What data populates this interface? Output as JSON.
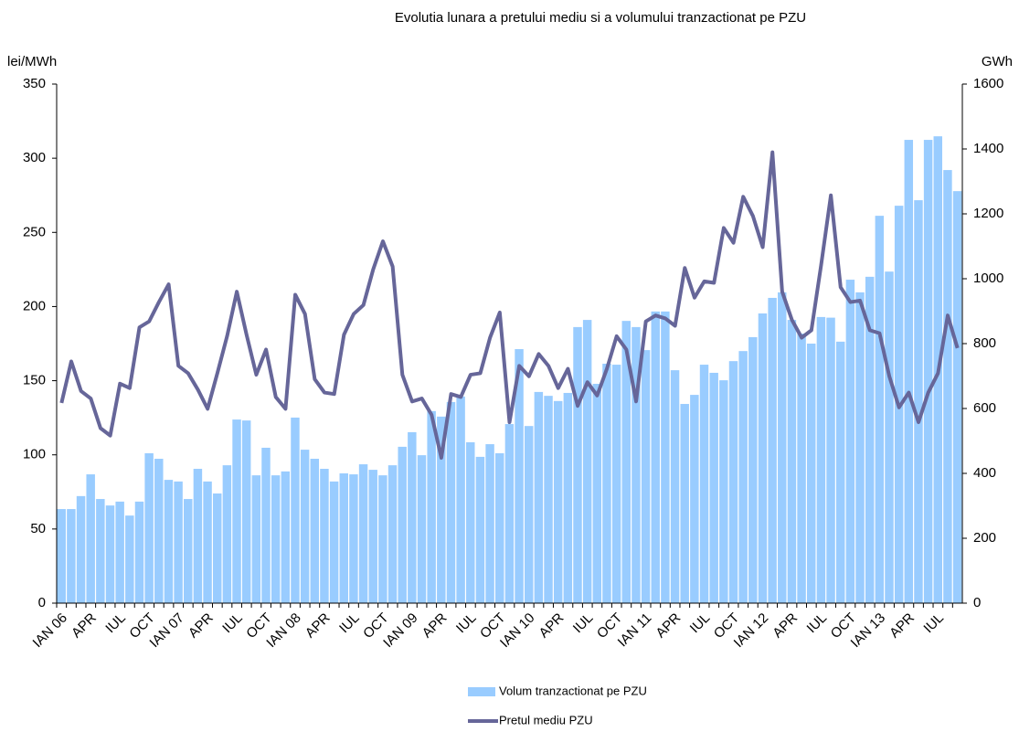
{
  "chart_data": {
    "type": "bar-line",
    "title": "Evolutia lunara a pretului mediu si a volumului tranzactionat pe PZU",
    "y_label": "lei/MWh",
    "y2_label": "GWh",
    "categories": [
      "IAN 06",
      null,
      null,
      "APR",
      null,
      null,
      "IUL",
      null,
      null,
      "OCT",
      null,
      null,
      "IAN 07",
      null,
      null,
      "APR",
      null,
      null,
      "IUL",
      null,
      null,
      "OCT",
      null,
      null,
      "IAN 08",
      null,
      null,
      "APR",
      null,
      null,
      "IUL",
      null,
      null,
      "OCT",
      null,
      null,
      "IAN 09",
      null,
      null,
      "APR",
      null,
      null,
      "IUL",
      null,
      null,
      "OCT",
      null,
      null,
      "IAN 10",
      null,
      null,
      "APR",
      null,
      null,
      "IUL",
      null,
      null,
      "OCT",
      null,
      null,
      "IAN 11",
      null,
      null,
      "APR",
      null,
      null,
      "IUL",
      null,
      null,
      "OCT",
      null,
      null,
      "IAN 12",
      null,
      null,
      "APR",
      null,
      null,
      "IUL",
      null,
      null,
      "OCT",
      null,
      null,
      "IAN 13",
      null,
      null,
      "APR",
      null,
      null,
      "IUL",
      null,
      null
    ],
    "series": [
      {
        "name": "Volum tranzactionat pe PZU",
        "type": "bar",
        "axis": "y2",
        "color": "#99ccff",
        "values": [
          290,
          290,
          330,
          397,
          321,
          301,
          313,
          270,
          313,
          462,
          445,
          380,
          375,
          321,
          414,
          375,
          338,
          425,
          566,
          563,
          394,
          479,
          394,
          406,
          572,
          473,
          445,
          414,
          375,
          400,
          397,
          428,
          411,
          394,
          425,
          482,
          527,
          456,
          592,
          575,
          620,
          637,
          496,
          451,
          490,
          462,
          552,
          783,
          546,
          651,
          639,
          623,
          648,
          851,
          873,
          676,
          738,
          735,
          870,
          851,
          780,
          899,
          899,
          718,
          614,
          642,
          735,
          710,
          687,
          746,
          777,
          820,
          893,
          941,
          958,
          873,
          831,
          800,
          882,
          880,
          806,
          997,
          958,
          1006,
          1194,
          1022,
          1225,
          1428,
          1242,
          1428,
          1439,
          1335,
          1270
        ]
      },
      {
        "name": "Pretul mediu PZU",
        "type": "line",
        "color": "#666699",
        "values": [
          135,
          163,
          143,
          138,
          118,
          113,
          148,
          145,
          186,
          190,
          203,
          215,
          160,
          155,
          144,
          131,
          155,
          180,
          210,
          181,
          154,
          171,
          139,
          131,
          208,
          195,
          151,
          142,
          141,
          181,
          195,
          201,
          225,
          244,
          227,
          154,
          136,
          138,
          127,
          98,
          141,
          139,
          154,
          155,
          179,
          196,
          122,
          160,
          153,
          168,
          160,
          145,
          158,
          133,
          149,
          140,
          158,
          180,
          171,
          136,
          190,
          194,
          192,
          187,
          226,
          206,
          217,
          216,
          253,
          243,
          274,
          261,
          240,
          304,
          210,
          191,
          179,
          184,
          228,
          275,
          213,
          203,
          204,
          184,
          182,
          153,
          132,
          142,
          122,
          142,
          155,
          194,
          172
        ]
      }
    ],
    "ylim": [
      0,
      350
    ],
    "yticks": [
      0,
      50,
      100,
      150,
      200,
      250,
      300,
      350
    ],
    "y2lim": [
      0,
      1600
    ],
    "y2ticks": [
      0,
      200,
      400,
      600,
      800,
      1000,
      1200,
      1400,
      1600
    ]
  }
}
